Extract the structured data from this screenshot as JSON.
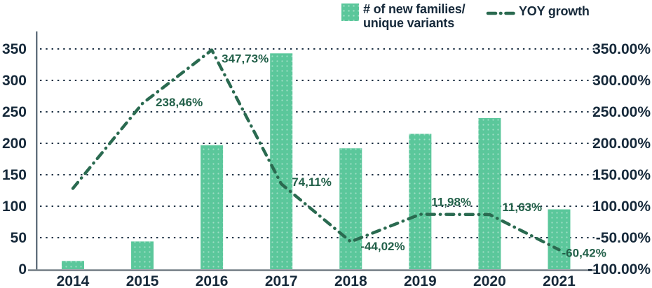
{
  "colors": {
    "bar": "#5BC79B",
    "line": "#2A6A50",
    "label_green": "#226049",
    "ink": "#16293A",
    "grid": "#1D3144",
    "baseline": "#7F888F"
  },
  "legend": {
    "series1_line1": "# of new families/",
    "series1_line2": "unique variants",
    "series2": "YOY growth"
  },
  "chart_data": {
    "type": "combo bar+line",
    "categories": [
      "2014",
      "2015",
      "2016",
      "2017",
      "2018",
      "2019",
      "2020",
      "2021"
    ],
    "series": [
      {
        "name": "# of new families/unique variants",
        "type": "bar",
        "axis": "left",
        "values": [
          13,
          44,
          197,
          343,
          192,
          215,
          240,
          95
        ]
      },
      {
        "name": "YOY growth",
        "type": "line",
        "style": "dash-dot",
        "axis": "right",
        "values_pct": [
          65,
          238.46,
          347.73,
          74.11,
          -44.02,
          11.98,
          11.63,
          -60.42
        ],
        "point_labels": [
          "",
          "238,46%",
          "347,73%",
          "74,11%",
          "-44,02%",
          "11,98%",
          "11,63%",
          "-60,42%"
        ]
      }
    ],
    "left_axis": {
      "ticks": [
        "350",
        "300",
        "250",
        "200",
        "150",
        "100",
        "50",
        "0"
      ],
      "range": [
        0,
        350
      ]
    },
    "right_axis": {
      "ticks": [
        "350.00%",
        "300.00%",
        "250.00%",
        "200.00%",
        "150.00%",
        "100.00%",
        "-50.00%",
        "-100.00%"
      ],
      "range_pct": [
        -100,
        350
      ]
    },
    "gridlines": "dotted horizontal",
    "legend_position": "top-center"
  }
}
